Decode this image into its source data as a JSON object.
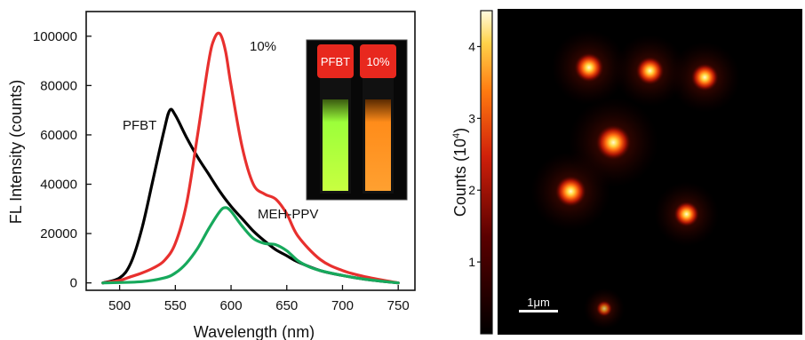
{
  "chart_data": [
    {
      "type": "line",
      "xlabel": "Wavelength (nm)",
      "ylabel": "FL Intensity (counts)",
      "xlim": [
        470,
        765
      ],
      "ylim": [
        -3000,
        110000
      ],
      "xticks": [
        500,
        550,
        600,
        650,
        700,
        750
      ],
      "yticks": [
        0,
        20000,
        40000,
        60000,
        80000,
        100000
      ],
      "xtick_labels": [
        "500",
        "550",
        "600",
        "650",
        "700",
        "750"
      ],
      "ytick_labels": [
        "0",
        "20000",
        "40000",
        "60000",
        "80000",
        "100000"
      ],
      "grid": false,
      "series": [
        {
          "name": "PFBT",
          "color": "#000000",
          "x": [
            485,
            500,
            510,
            520,
            530,
            540,
            545,
            550,
            560,
            570,
            580,
            590,
            600,
            610,
            620,
            630,
            640,
            650,
            660,
            680,
            700,
            720,
            750
          ],
          "y": [
            0,
            2000,
            8000,
            22000,
            42000,
            62000,
            70000,
            68000,
            59000,
            51000,
            44000,
            37000,
            31000,
            26000,
            21000,
            17000,
            13500,
            11000,
            8500,
            5000,
            3000,
            1500,
            0
          ]
        },
        {
          "name": "10%",
          "color": "#e8302e",
          "x": [
            485,
            500,
            510,
            520,
            530,
            540,
            550,
            560,
            570,
            580,
            585,
            590,
            595,
            600,
            610,
            620,
            630,
            640,
            650,
            660,
            680,
            700,
            720,
            750
          ],
          "y": [
            0,
            1000,
            2500,
            4000,
            6000,
            9000,
            16000,
            32000,
            60000,
            90000,
            99000,
            101000,
            94000,
            80000,
            55000,
            40000,
            36000,
            34000,
            28000,
            19000,
            9500,
            5000,
            2500,
            0
          ]
        },
        {
          "name": "MEH-PPV",
          "color": "#17a95c",
          "x": [
            485,
            520,
            540,
            550,
            560,
            570,
            580,
            590,
            595,
            600,
            610,
            620,
            630,
            640,
            650,
            660,
            670,
            680,
            700,
            720,
            750
          ],
          "y": [
            0,
            500,
            2000,
            4000,
            8000,
            14000,
            22000,
            29000,
            30500,
            29000,
            23000,
            18000,
            16000,
            15500,
            13000,
            9000,
            6500,
            5000,
            3000,
            1500,
            0
          ]
        }
      ],
      "annotations": [
        "PFBT",
        "10%",
        "MEH-PPV"
      ],
      "inset": {
        "vial_labels": [
          "PFBT",
          "10%"
        ],
        "vial_colors": [
          "#9cff3a",
          "#ff8c1a"
        ]
      }
    },
    {
      "type": "heatmap",
      "colorbar": {
        "label_main": "Counts (10",
        "label_exp": "4",
        "label_end": ")",
        "range": [
          0,
          4.5
        ],
        "ticks": [
          1,
          2,
          3,
          4
        ],
        "tick_labels": [
          "1",
          "2",
          "3",
          "4"
        ]
      },
      "scale_bar_label": "1μm",
      "spots": [
        {
          "x": 0.3,
          "y": 0.82,
          "intensity": 3.5
        },
        {
          "x": 0.5,
          "y": 0.81,
          "intensity": 3.3
        },
        {
          "x": 0.68,
          "y": 0.79,
          "intensity": 3.2
        },
        {
          "x": 0.38,
          "y": 0.59,
          "intensity": 4.5
        },
        {
          "x": 0.24,
          "y": 0.44,
          "intensity": 3.8
        },
        {
          "x": 0.62,
          "y": 0.37,
          "intensity": 2.8
        },
        {
          "x": 0.35,
          "y": 0.08,
          "intensity": 1.2
        }
      ]
    }
  ]
}
